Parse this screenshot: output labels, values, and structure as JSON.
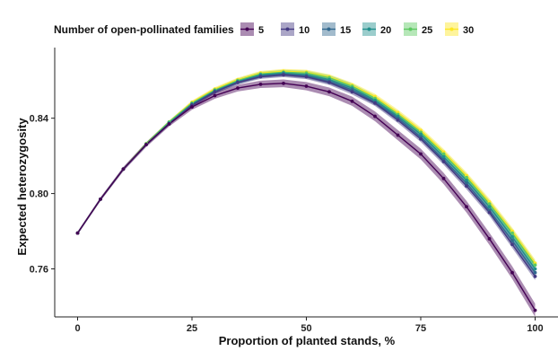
{
  "chart_data": {
    "type": "line",
    "xlabel": "Proportion of planted stands, %",
    "ylabel": "Expected heterozygosity",
    "xlim": [
      -5,
      105
    ],
    "ylim": [
      0.7345,
      0.8775
    ],
    "x_ticks": [
      0,
      25,
      50,
      75,
      100
    ],
    "y_ticks": [
      0.76,
      0.8,
      0.84
    ],
    "y_tick_labels": [
      "0.76",
      "0.80",
      "0.84"
    ],
    "x_tick_labels": [
      "0",
      "25",
      "50",
      "75",
      "100"
    ],
    "grid": false,
    "legend": {
      "title": "Number of open-pollinated families",
      "placement": "top"
    },
    "x": [
      0,
      5,
      10,
      15,
      20,
      25,
      30,
      35,
      40,
      45,
      50,
      55,
      60,
      65,
      70,
      75,
      80,
      85,
      90,
      95,
      100
    ],
    "series": [
      {
        "name": "5",
        "color": "#440154",
        "band": 0.0035,
        "values": [
          0.779,
          0.797,
          0.813,
          0.826,
          0.837,
          0.846,
          0.852,
          0.856,
          0.858,
          0.8585,
          0.857,
          0.854,
          0.849,
          0.841,
          0.831,
          0.821,
          0.808,
          0.793,
          0.776,
          0.758,
          0.738
        ]
      },
      {
        "name": "10",
        "color": "#443a83",
        "band": 0.002,
        "values": [
          0.779,
          0.797,
          0.813,
          0.826,
          0.837,
          0.847,
          0.854,
          0.859,
          0.862,
          0.863,
          0.862,
          0.859,
          0.854,
          0.848,
          0.839,
          0.829,
          0.817,
          0.804,
          0.79,
          0.773,
          0.756
        ]
      },
      {
        "name": "15",
        "color": "#31688e",
        "band": 0.002,
        "values": [
          0.779,
          0.797,
          0.813,
          0.826,
          0.837,
          0.847,
          0.854,
          0.859,
          0.8625,
          0.8635,
          0.8625,
          0.8595,
          0.855,
          0.8485,
          0.84,
          0.83,
          0.818,
          0.8055,
          0.791,
          0.775,
          0.758
        ]
      },
      {
        "name": "20",
        "color": "#21908d",
        "band": 0.002,
        "values": [
          0.779,
          0.797,
          0.813,
          0.826,
          0.8375,
          0.8475,
          0.8545,
          0.8595,
          0.863,
          0.864,
          0.863,
          0.8605,
          0.856,
          0.8495,
          0.841,
          0.8315,
          0.8195,
          0.807,
          0.793,
          0.777,
          0.76
        ]
      },
      {
        "name": "25",
        "color": "#5ec962",
        "band": 0.002,
        "values": [
          0.779,
          0.797,
          0.813,
          0.8265,
          0.838,
          0.848,
          0.855,
          0.86,
          0.8635,
          0.8645,
          0.864,
          0.8615,
          0.857,
          0.8505,
          0.842,
          0.8325,
          0.821,
          0.8085,
          0.7945,
          0.779,
          0.762
        ]
      },
      {
        "name": "30",
        "color": "#fde725",
        "band": 0.002,
        "values": [
          0.779,
          0.797,
          0.813,
          0.8265,
          0.838,
          0.8485,
          0.8555,
          0.8605,
          0.864,
          0.865,
          0.8645,
          0.862,
          0.8575,
          0.8515,
          0.843,
          0.8335,
          0.822,
          0.8095,
          0.7955,
          0.78,
          0.763
        ]
      }
    ]
  }
}
